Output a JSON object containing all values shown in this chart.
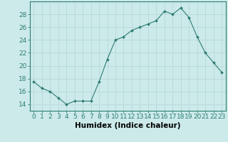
{
  "x": [
    0,
    1,
    2,
    3,
    4,
    5,
    6,
    7,
    8,
    9,
    10,
    11,
    12,
    13,
    14,
    15,
    16,
    17,
    18,
    19,
    20,
    21,
    22,
    23
  ],
  "y": [
    17.5,
    16.5,
    16.0,
    15.0,
    14.0,
    14.5,
    14.5,
    14.5,
    17.5,
    21.0,
    24.0,
    24.5,
    25.5,
    26.0,
    26.5,
    27.0,
    28.5,
    28.0,
    29.0,
    27.5,
    24.5,
    22.0,
    20.5,
    19.0
  ],
  "line_color": "#2e7d6e",
  "marker": "D",
  "marker_size": 2.0,
  "bg_color": "#cceaea",
  "grid_color": "#b8d8d8",
  "xlabel": "Humidex (Indice chaleur)",
  "ylim": [
    13,
    30
  ],
  "xlim": [
    -0.5,
    23.5
  ],
  "yticks": [
    14,
    16,
    18,
    20,
    22,
    24,
    26,
    28
  ],
  "xticks": [
    0,
    1,
    2,
    3,
    4,
    5,
    6,
    7,
    8,
    9,
    10,
    11,
    12,
    13,
    14,
    15,
    16,
    17,
    18,
    19,
    20,
    21,
    22,
    23
  ],
  "xtick_labels": [
    "0",
    "1",
    "2",
    "3",
    "4",
    "5",
    "6",
    "7",
    "8",
    "9",
    "10",
    "11",
    "12",
    "13",
    "14",
    "15",
    "16",
    "17",
    "18",
    "19",
    "20",
    "21",
    "22",
    "23"
  ],
  "spine_color": "#2e7d6e",
  "tick_color": "#2e7d6e",
  "label_color": "#000000",
  "tick_fontsize": 6.5,
  "xlabel_fontsize": 7.5
}
